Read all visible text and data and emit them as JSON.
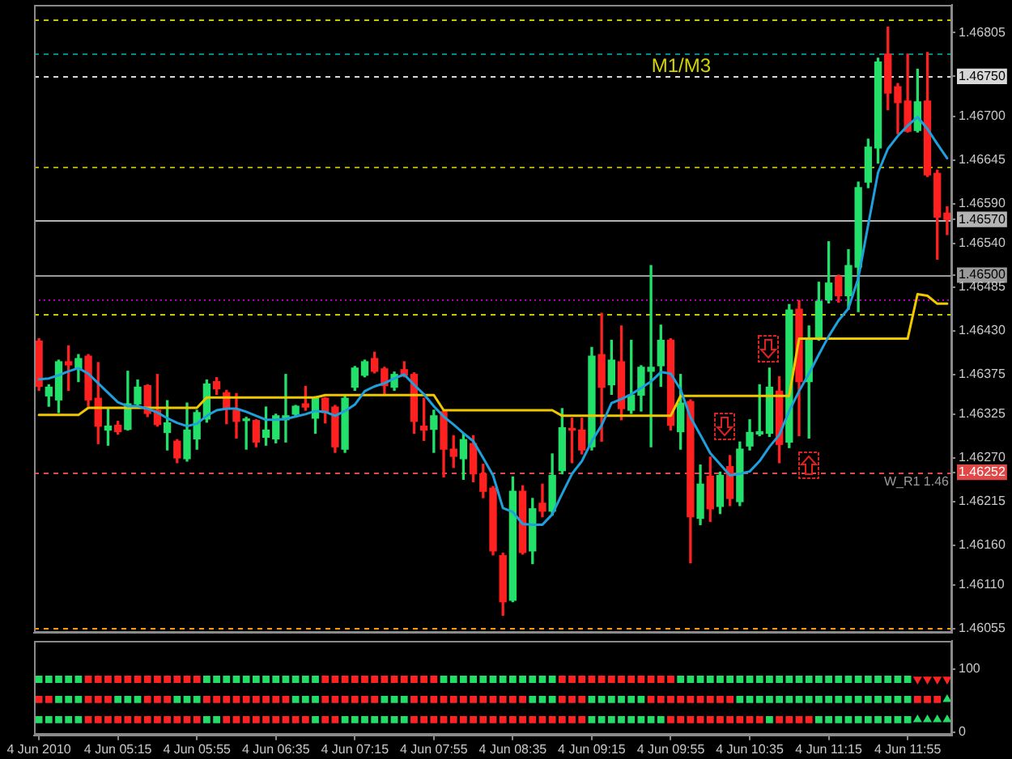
{
  "chart_data": [
    {
      "type": "candlestick",
      "categories": [
        null,
        null,
        null,
        null,
        null,
        null,
        null,
        null,
        null,
        null,
        null,
        null,
        null,
        null,
        null,
        null,
        null,
        null,
        null,
        null,
        null,
        null,
        null,
        null,
        null,
        null,
        null,
        null,
        null,
        null,
        null,
        null,
        null,
        null,
        null,
        null,
        null,
        null,
        null,
        null,
        null,
        null,
        null,
        null,
        null,
        null,
        null,
        null,
        null,
        null,
        null,
        null,
        null,
        null,
        null,
        null,
        null,
        null,
        null,
        null,
        null,
        null,
        null,
        null,
        null,
        null,
        null,
        null,
        null,
        null,
        null,
        null,
        null,
        null,
        null,
        null,
        null,
        null,
        null,
        null,
        null,
        null,
        null,
        null,
        null,
        null,
        null,
        null,
        null,
        null,
        null,
        null,
        null
      ],
      "ohlc": [
        [
          1.46417,
          1.4642,
          1.46355,
          1.4636
        ],
        [
          1.46348,
          1.46362,
          1.46335,
          1.46359
        ],
        [
          1.46343,
          1.46393,
          1.46327,
          1.46391
        ],
        [
          1.46391,
          1.46411,
          1.46355,
          1.46387
        ],
        [
          1.46382,
          1.464,
          1.46366,
          1.46395
        ],
        [
          1.46398,
          1.464,
          1.46335,
          1.46343
        ],
        [
          1.46345,
          1.4639,
          1.46288,
          1.4631
        ],
        [
          1.46305,
          1.46332,
          1.46286,
          1.4631
        ],
        [
          1.46311,
          1.46316,
          1.463,
          1.46303
        ],
        [
          1.46306,
          1.46379,
          1.46305,
          1.46338
        ],
        [
          1.46338,
          1.46368,
          1.46333,
          1.46359
        ],
        [
          1.46361,
          1.46362,
          1.46322,
          1.46326
        ],
        [
          1.4633,
          1.46375,
          1.4631,
          1.46312
        ],
        [
          1.46302,
          1.46342,
          1.4628,
          1.46314
        ],
        [
          1.46291,
          1.46293,
          1.46264,
          1.4627
        ],
        [
          1.46269,
          1.46339,
          1.46266,
          1.46305
        ],
        [
          1.46294,
          1.4633,
          1.46281,
          1.46327
        ],
        [
          1.46319,
          1.46368,
          1.46315,
          1.46363
        ],
        [
          1.46366,
          1.46371,
          1.4635,
          1.46357
        ],
        [
          1.46352,
          1.46355,
          1.46313,
          1.46332
        ],
        [
          1.4633,
          1.46351,
          1.46295,
          1.46316
        ],
        [
          1.46317,
          1.46321,
          1.46281,
          1.46319
        ],
        [
          1.46317,
          1.46318,
          1.46284,
          1.4629
        ],
        [
          1.46296,
          1.46334,
          1.46286,
          1.46305
        ],
        [
          1.46294,
          1.46325,
          1.46289,
          1.46323
        ],
        [
          1.46318,
          1.46375,
          1.4629,
          1.46323
        ],
        [
          1.46325,
          1.46336,
          1.46322,
          1.46335
        ],
        [
          1.46338,
          1.4636,
          1.4633,
          1.46334
        ],
        [
          1.4632,
          1.46347,
          1.46301,
          1.46345
        ],
        [
          1.46345,
          1.46346,
          1.46314,
          1.46327
        ],
        [
          1.46334,
          1.46336,
          1.46277,
          1.46284
        ],
        [
          1.46281,
          1.46348,
          1.46277,
          1.46345
        ],
        [
          1.46359,
          1.46385,
          1.46355,
          1.46383
        ],
        [
          1.46374,
          1.46393,
          1.46372,
          1.46391
        ],
        [
          1.46395,
          1.46403,
          1.46377,
          1.46379
        ],
        [
          1.46382,
          1.46384,
          1.4635,
          1.46361
        ],
        [
          1.46359,
          1.46378,
          1.46355,
          1.46375
        ],
        [
          1.46381,
          1.46391,
          1.46372,
          1.46374
        ],
        [
          1.46375,
          1.46377,
          1.46301,
          1.46316
        ],
        [
          1.4631,
          1.46345,
          1.46292,
          1.46305
        ],
        [
          1.46306,
          1.4633,
          1.46277,
          1.46323
        ],
        [
          1.46328,
          1.4633,
          1.46246,
          1.46281
        ],
        [
          1.46281,
          1.46298,
          1.46258,
          1.46272
        ],
        [
          1.46269,
          1.463,
          1.46243,
          1.46293
        ],
        [
          1.46288,
          1.46298,
          1.4624,
          1.4625
        ],
        [
          1.4625,
          1.46262,
          1.4622,
          1.46228
        ],
        [
          1.46232,
          1.46234,
          1.46148,
          1.46153
        ],
        [
          1.46147,
          1.4615,
          1.46072,
          1.46089
        ],
        [
          1.46091,
          1.46246,
          1.46089,
          1.46228
        ],
        [
          1.46228,
          1.46235,
          1.46149,
          1.46151
        ],
        [
          1.46153,
          1.46219,
          1.46137,
          1.46206
        ],
        [
          1.46213,
          1.46237,
          1.46196,
          1.46203
        ],
        [
          1.46203,
          1.46275,
          1.46198,
          1.46248
        ],
        [
          1.46254,
          1.46332,
          1.4625,
          1.46308
        ],
        [
          1.46307,
          1.4632,
          1.46264,
          1.46305
        ],
        [
          1.46305,
          1.4632,
          1.46275,
          1.4628
        ],
        [
          1.46284,
          1.46409,
          1.4628,
          1.46398
        ],
        [
          1.464,
          1.46452,
          1.46291,
          1.46359
        ],
        [
          1.46362,
          1.46418,
          1.4635,
          1.46393
        ],
        [
          1.46391,
          1.46436,
          1.46318,
          1.46332
        ],
        [
          1.4633,
          1.46418,
          1.46326,
          1.46349
        ],
        [
          1.46349,
          1.46386,
          1.46329,
          1.46384
        ],
        [
          1.46379,
          1.46512,
          1.46284,
          1.46384
        ],
        [
          1.46386,
          1.46437,
          1.4636,
          1.46418
        ],
        [
          1.46418,
          1.4642,
          1.46305,
          1.46311
        ],
        [
          1.46303,
          1.46375,
          1.46281,
          1.46339
        ],
        [
          1.46341,
          1.46343,
          1.46138,
          1.46196
        ],
        [
          1.46194,
          1.46261,
          1.46186,
          1.46237
        ],
        [
          1.46247,
          1.46271,
          1.4619,
          1.46206
        ],
        [
          1.46209,
          1.46252,
          1.462,
          1.46248
        ],
        [
          1.46259,
          1.46273,
          1.4621,
          1.46219
        ],
        [
          1.46215,
          1.4629,
          1.4621,
          1.46281
        ],
        [
          1.46285,
          1.46318,
          1.4628,
          1.46302
        ],
        [
          1.463,
          1.46362,
          1.46298,
          1.46303
        ],
        [
          1.46301,
          1.46383,
          1.46297,
          1.46359
        ],
        [
          1.46354,
          1.46372,
          1.46264,
          1.46287
        ],
        [
          1.4629,
          1.46463,
          1.46283,
          1.46456
        ],
        [
          1.46457,
          1.46468,
          1.46298,
          1.46366
        ],
        [
          1.46366,
          1.46436,
          1.46295,
          1.4642
        ],
        [
          1.46422,
          1.46491,
          1.46418,
          1.46467
        ],
        [
          1.46469,
          1.46542,
          1.46465,
          1.4649
        ],
        [
          1.46498,
          1.465,
          1.46466,
          1.46474
        ],
        [
          1.46474,
          1.46532,
          1.46457,
          1.46512
        ],
        [
          1.4651,
          1.46617,
          1.46454,
          1.4661
        ],
        [
          1.46617,
          1.46671,
          1.4661,
          1.46661
        ],
        [
          1.4666,
          1.46773,
          1.46641,
          1.46768
        ],
        [
          1.46778,
          1.46812,
          1.46708,
          1.46729
        ],
        [
          1.46737,
          1.46741,
          1.46678,
          1.46717
        ],
        [
          1.46719,
          1.46778,
          1.4668,
          1.46681
        ],
        [
          1.46682,
          1.46759,
          1.4668,
          1.46718
        ],
        [
          1.46719,
          1.4678,
          1.46624,
          1.46626
        ],
        [
          1.46628,
          1.46632,
          1.4652,
          1.46573
        ],
        [
          1.46578,
          1.46586,
          1.46551,
          1.4657
        ]
      ],
      "colors": [
        "#ff2020",
        "#22e06a",
        "#22e06a",
        "#ff2020",
        "#22e06a",
        "#ff2020",
        "#ff2020",
        "#22e06a",
        "#ff2020",
        "#22e06a",
        "#22e06a",
        "#ff2020",
        "#ff2020",
        "#22e06a",
        "#ff2020",
        "#22e06a",
        "#22e06a",
        "#22e06a",
        "#ff2020",
        "#ff2020",
        "#ff2020",
        "#22e06a",
        "#ff2020",
        "#22e06a",
        "#22e06a",
        "#22e06a",
        "#22e06a",
        "#ff2020",
        "#22e06a",
        "#ff2020",
        "#ff2020",
        "#22e06a",
        "#22e06a",
        "#22e06a",
        "#ff2020",
        "#ff2020",
        "#22e06a",
        "#ff2020",
        "#ff2020",
        "#ff2020",
        "#22e06a",
        "#ff2020",
        "#ff2020",
        "#22e06a",
        "#ff2020",
        "#ff2020",
        "#ff2020",
        "#ff2020",
        "#22e06a",
        "#ff2020",
        "#22e06a",
        "#ff2020",
        "#22e06a",
        "#22e06a",
        "#ff2020",
        "#ff2020",
        "#22e06a",
        "#ff2020",
        "#22e06a",
        "#ff2020",
        "#22e06a",
        "#22e06a",
        "#22e06a",
        "#22e06a",
        "#ff2020",
        "#22e06a",
        "#ff2020",
        "#22e06a",
        "#ff2020",
        "#22e06a",
        "#ff2020",
        "#22e06a",
        "#22e06a",
        "#22e06a",
        "#22e06a",
        "#ff2020",
        "#22e06a",
        "#ff2020",
        "#22e06a",
        "#22e06a",
        "#22e06a",
        "#ff2020",
        "#22e06a",
        "#22e06a",
        "#22e06a",
        "#22e06a",
        "#ff2020",
        "#ff2020",
        "#ff2020",
        "#22e06a",
        "#ff2020",
        "#ff2020",
        "#ff2020"
      ],
      "series": [
        {
          "type": "line",
          "color": "#1ea0dc",
          "values": [
            1.46369,
            1.4637,
            1.46374,
            1.46379,
            1.46383,
            1.46376,
            1.46364,
            1.46352,
            1.4634,
            1.46335,
            1.46335,
            1.46332,
            1.46327,
            1.4632,
            1.46314,
            1.4631,
            1.46313,
            1.46323,
            1.4633,
            1.46332,
            1.46332,
            1.46328,
            1.46323,
            1.46318,
            1.46318,
            1.46319,
            1.46322,
            1.46325,
            1.46329,
            1.46328,
            1.46323,
            1.46329,
            1.46337,
            1.46354,
            1.4636,
            1.46364,
            1.4637,
            1.46375,
            1.46362,
            1.4635,
            1.46335,
            1.46322,
            1.46312,
            1.46301,
            1.46291,
            1.4627,
            1.46248,
            1.46207,
            1.46202,
            1.46187,
            1.46186,
            1.46186,
            1.46199,
            1.46225,
            1.4625,
            1.46266,
            1.46291,
            1.46311,
            1.46339,
            1.46344,
            1.4635,
            1.46358,
            1.46366,
            1.46378,
            1.46376,
            1.46356,
            1.46321,
            1.46299,
            1.46276,
            1.46262,
            1.46248,
            1.4625,
            1.46253,
            1.46266,
            1.46284,
            1.46299,
            1.46329,
            1.46354,
            1.46376,
            1.464,
            1.46423,
            1.46443,
            1.46458,
            1.46496,
            1.46563,
            1.46629,
            1.46659,
            1.46675,
            1.46688,
            1.46699,
            1.46684,
            1.46665,
            1.46647
          ]
        },
        {
          "type": "line",
          "color": "#f0c800",
          "values": [
            1.46324,
            1.46324,
            1.46324,
            1.46324,
            1.46324,
            1.46333,
            1.46333,
            1.46333,
            1.46333,
            1.46333,
            1.46333,
            1.46333,
            1.46333,
            1.46333,
            1.46333,
            1.46333,
            1.46333,
            1.46346,
            1.46346,
            1.46346,
            1.46346,
            1.46346,
            1.46346,
            1.46346,
            1.46346,
            1.46346,
            1.46346,
            1.46346,
            1.46346,
            1.46349,
            1.46349,
            1.46349,
            1.46349,
            1.46349,
            1.46349,
            1.46349,
            1.46349,
            1.46349,
            1.46349,
            1.46349,
            1.46349,
            1.4633,
            1.4633,
            1.4633,
            1.4633,
            1.4633,
            1.4633,
            1.4633,
            1.4633,
            1.4633,
            1.4633,
            1.4633,
            1.4633,
            1.46323,
            1.46323,
            1.46323,
            1.46323,
            1.46323,
            1.46323,
            1.46323,
            1.46323,
            1.46323,
            1.46323,
            1.46323,
            1.46323,
            1.46348,
            1.46348,
            1.46348,
            1.46348,
            1.46348,
            1.46348,
            1.46348,
            1.46348,
            1.46348,
            1.46348,
            1.46348,
            1.46348,
            1.4642,
            1.4642,
            1.4642,
            1.4642,
            1.4642,
            1.4642,
            1.4642,
            1.4642,
            1.4642,
            1.4642,
            1.4642,
            1.4642,
            1.46476,
            1.46474,
            1.46464,
            1.46464
          ]
        }
      ],
      "ylim": [
        1.4605,
        1.4684
      ],
      "yticks": [
        1.46805,
        {
          "value": 1.4675,
          "label": "1.46750"
        },
        {
          "value": 1.467,
          "label": "1.46700"
        },
        1.46645,
        {
          "value": 1.4659,
          "label": "1.46590"
        },
        {
          "value": 1.4657,
          "label": "1.46570"
        },
        {
          "value": 1.4654,
          "label": "1.46540"
        },
        {
          "value": 1.465,
          "label": "1.46500"
        },
        1.46485,
        {
          "value": 1.4643,
          "label": "1.46430"
        },
        1.46375,
        1.46325,
        {
          "value": 1.4627,
          "label": "1.46270"
        },
        1.46252,
        1.46215,
        {
          "value": 1.4616,
          "label": "1.46160"
        },
        {
          "value": 1.4611,
          "label": "1.46110"
        },
        1.46055
      ],
      "tick_labels": "y",
      "ref_lines": [
        {
          "axis": "y",
          "value": 1.46822,
          "color": "#c8c800",
          "line_style": "dashed"
        },
        {
          "axis": "y",
          "value": 1.46779,
          "color": "#008c8c",
          "line_style": "dashed"
        },
        {
          "axis": "y",
          "value": 1.4675,
          "color": "#d8d8d8",
          "line_style": "dashed"
        },
        {
          "axis": "y",
          "value": 1.46637,
          "color": "#a8a800",
          "line_style": "dashed"
        },
        {
          "axis": "y",
          "value": 1.4657,
          "color": "#b4b4b4",
          "line_style": "solid"
        },
        {
          "axis": "y",
          "value": 1.465,
          "color": "#9a9a9a",
          "line_style": "solid"
        },
        {
          "axis": "y",
          "value": 1.4647,
          "color": "#b000b0",
          "line_style": "dotted"
        },
        {
          "axis": "y",
          "value": 1.46452,
          "color": "#c8c800",
          "line_style": "dashed"
        },
        {
          "axis": "y",
          "value": 1.46252,
          "color": "#e04848",
          "line_style": "dashed",
          "label": "W_R1 1.46"
        },
        {
          "axis": "y",
          "value": 1.46057,
          "color": "#ff9900",
          "line_style": "dashed"
        }
      ],
      "annotations": [
        "M1/M3"
      ]
    },
    {
      "type": "scatter",
      "categories": [
        "4 Jun 2010",
        null,
        null,
        null,
        null,
        null,
        null,
        null,
        "4 Jun 05:15",
        null,
        null,
        null,
        null,
        null,
        null,
        null,
        "4 Jun 05:55",
        null,
        null,
        null,
        null,
        null,
        null,
        null,
        "4 Jun 06:35",
        null,
        null,
        null,
        null,
        null,
        null,
        null,
        "4 Jun 07:15",
        null,
        null,
        null,
        null,
        null,
        null,
        null,
        "4 Jun 07:55",
        null,
        null,
        null,
        null,
        null,
        null,
        null,
        "4 Jun 08:35",
        null,
        null,
        null,
        null,
        null,
        null,
        null,
        "4 Jun 09:15",
        null,
        null,
        null,
        null,
        null,
        null,
        null,
        "4 Jun 09:55",
        null,
        null,
        null,
        null,
        null,
        null,
        null,
        "4 Jun 10:35",
        null,
        null,
        null,
        null,
        null,
        null,
        null,
        "4 Jun 11:15",
        null,
        null,
        null,
        null,
        null,
        null,
        null,
        "4 Jun 11:55",
        null,
        null,
        null,
        null
      ],
      "ylim": [
        -5,
        145
      ],
      "yticks": [
        0,
        100
      ],
      "marker": "square",
      "series": [
        {
          "values": [
            84,
            84,
            84,
            84,
            84,
            84,
            84,
            84,
            84,
            84,
            84,
            84,
            84,
            84,
            84,
            84,
            84,
            84,
            84,
            84,
            84,
            84,
            84,
            84,
            84,
            84,
            84,
            84,
            84,
            84,
            84,
            84,
            84,
            84,
            84,
            84,
            84,
            84,
            84,
            84,
            84,
            84,
            84,
            84,
            84,
            84,
            84,
            84,
            84,
            84,
            84,
            84,
            84,
            84,
            84,
            84,
            84,
            84,
            84,
            84,
            84,
            84,
            84,
            84,
            84,
            84,
            84,
            84,
            84,
            84,
            84,
            84,
            84,
            84,
            84,
            84,
            84,
            84,
            84,
            84,
            84,
            84,
            84,
            84,
            84,
            84,
            84,
            84,
            84,
            null,
            null,
            null,
            null
          ],
          "colors": [
            "#22dd66",
            "#22dd66",
            "#22dd66",
            "#22dd66",
            "#22dd66",
            "#ff2222",
            "#ff2222",
            "#ff2222",
            "#ff2222",
            "#ff2222",
            "#ff2222",
            "#ff2222",
            "#ff2222",
            "#ff2222",
            "#ff2222",
            "#ff2222",
            "#ff2222",
            "#22dd66",
            "#22dd66",
            "#22dd66",
            "#22dd66",
            "#22dd66",
            "#22dd66",
            "#22dd66",
            "#22dd66",
            "#22dd66",
            "#22dd66",
            "#22dd66",
            "#22dd66",
            "#ff2222",
            "#ff2222",
            "#ff2222",
            "#ff2222",
            "#ff2222",
            "#ff2222",
            "#ff2222",
            "#ff2222",
            "#ff2222",
            "#ff2222",
            "#ff2222",
            "#ff2222",
            "#22dd66",
            "#22dd66",
            "#22dd66",
            "#22dd66",
            "#22dd66",
            "#22dd66",
            "#22dd66",
            "#22dd66",
            "#22dd66",
            "#22dd66",
            "#22dd66",
            "#22dd66",
            "#ff2222",
            "#ff2222",
            "#ff2222",
            "#ff2222",
            "#ff2222",
            "#ff2222",
            "#ff2222",
            "#ff2222",
            "#ff2222",
            "#ff2222",
            "#ff2222",
            "#ff2222",
            "#22dd66",
            "#22dd66",
            "#22dd66",
            "#22dd66",
            "#22dd66",
            "#22dd66",
            "#22dd66",
            "#22dd66",
            "#22dd66",
            "#22dd66",
            "#22dd66",
            "#22dd66",
            "#22dd66",
            "#22dd66",
            "#22dd66",
            "#22dd66",
            "#22dd66",
            "#22dd66",
            "#22dd66",
            "#22dd66",
            "#22dd66",
            "#22dd66",
            "#22dd66",
            "#22dd66",
            null,
            null,
            null,
            null
          ]
        },
        {
          "marker": "triangle",
          "color": "#ff2222",
          "values": [
            null,
            null,
            null,
            null,
            null,
            null,
            null,
            null,
            null,
            null,
            null,
            null,
            null,
            null,
            null,
            null,
            null,
            null,
            null,
            null,
            null,
            null,
            null,
            null,
            null,
            null,
            null,
            null,
            null,
            null,
            null,
            null,
            null,
            null,
            null,
            null,
            null,
            null,
            null,
            null,
            null,
            null,
            null,
            null,
            null,
            null,
            null,
            null,
            null,
            null,
            null,
            null,
            null,
            null,
            null,
            null,
            null,
            null,
            null,
            null,
            null,
            null,
            null,
            null,
            null,
            null,
            null,
            null,
            null,
            null,
            null,
            null,
            null,
            null,
            null,
            null,
            null,
            null,
            null,
            null,
            null,
            null,
            null,
            null,
            null,
            null,
            null,
            null,
            null,
            84,
            84,
            84,
            84
          ]
        },
        {
          "values": [
            52,
            52,
            52,
            52,
            52,
            52,
            52,
            52,
            52,
            52,
            52,
            52,
            52,
            52,
            52,
            52,
            52,
            52,
            52,
            52,
            52,
            52,
            52,
            52,
            52,
            52,
            52,
            52,
            52,
            52,
            52,
            52,
            52,
            52,
            52,
            52,
            52,
            52,
            52,
            52,
            52,
            52,
            52,
            52,
            52,
            52,
            52,
            52,
            52,
            52,
            52,
            52,
            52,
            52,
            52,
            52,
            52,
            52,
            52,
            52,
            52,
            52,
            52,
            52,
            52,
            52,
            52,
            52,
            52,
            52,
            52,
            52,
            52,
            52,
            52,
            52,
            52,
            52,
            52,
            52,
            52,
            52,
            52,
            52,
            52,
            52,
            52,
            52,
            52,
            52,
            52,
            52,
            null
          ],
          "colors": [
            "#ff2222",
            "#ff2222",
            "#22dd66",
            "#22dd66",
            "#22dd66",
            "#ff2222",
            "#ff2222",
            "#ff2222",
            "#22dd66",
            "#22dd66",
            "#22dd66",
            "#ff2222",
            "#ff2222",
            "#ff2222",
            "#22dd66",
            "#22dd66",
            "#22dd66",
            "#ff2222",
            "#ff2222",
            "#ff2222",
            "#ff2222",
            "#ff2222",
            "#ff2222",
            "#ff2222",
            "#ff2222",
            "#ff2222",
            "#22dd66",
            "#22dd66",
            "#22dd66",
            "#ff2222",
            "#ff2222",
            "#ff2222",
            "#ff2222",
            "#ff2222",
            "#ff2222",
            "#22dd66",
            "#22dd66",
            "#22dd66",
            "#ff2222",
            "#ff2222",
            "#ff2222",
            "#ff2222",
            "#ff2222",
            "#ff2222",
            "#ff2222",
            "#ff2222",
            "#ff2222",
            "#ff2222",
            "#ff2222",
            "#ff2222",
            "#22dd66",
            "#22dd66",
            "#22dd66",
            "#ff2222",
            "#ff2222",
            "#ff2222",
            "#22dd66",
            "#22dd66",
            "#22dd66",
            "#22dd66",
            "#22dd66",
            "#22dd66",
            "#ff2222",
            "#ff2222",
            "#ff2222",
            "#ff2222",
            "#ff2222",
            "#ff2222",
            "#ff2222",
            "#ff2222",
            "#ff2222",
            "#22dd66",
            "#22dd66",
            "#22dd66",
            "#22dd66",
            "#22dd66",
            "#22dd66",
            "#22dd66",
            "#22dd66",
            "#22dd66",
            "#22dd66",
            "#22dd66",
            "#22dd66",
            "#22dd66",
            "#22dd66",
            "#22dd66",
            "#22dd66",
            "#22dd66",
            "#22dd66",
            "#ff2222",
            "#ff2222",
            "#ff2222",
            null
          ]
        },
        {
          "marker": "triangle",
          "color": "#22dd66",
          "values": [
            null,
            null,
            null,
            null,
            null,
            null,
            null,
            null,
            null,
            null,
            null,
            null,
            null,
            null,
            null,
            null,
            null,
            null,
            null,
            null,
            null,
            null,
            null,
            null,
            null,
            null,
            null,
            null,
            null,
            null,
            null,
            null,
            null,
            null,
            null,
            null,
            null,
            null,
            null,
            null,
            null,
            null,
            null,
            null,
            null,
            null,
            null,
            null,
            null,
            null,
            null,
            null,
            null,
            null,
            null,
            null,
            null,
            null,
            null,
            null,
            null,
            null,
            null,
            null,
            null,
            null,
            null,
            null,
            null,
            null,
            null,
            null,
            null,
            null,
            null,
            null,
            null,
            null,
            null,
            null,
            null,
            null,
            null,
            null,
            null,
            null,
            null,
            null,
            null,
            null,
            null,
            null,
            52
          ]
        },
        {
          "values": [
            20,
            20,
            20,
            20,
            20,
            20,
            20,
            20,
            20,
            20,
            20,
            20,
            20,
            20,
            20,
            20,
            20,
            20,
            20,
            20,
            20,
            20,
            20,
            20,
            20,
            20,
            20,
            20,
            20,
            20,
            20,
            20,
            20,
            20,
            20,
            20,
            20,
            20,
            20,
            20,
            20,
            20,
            20,
            20,
            20,
            20,
            20,
            20,
            20,
            20,
            20,
            20,
            20,
            20,
            20,
            20,
            20,
            20,
            20,
            20,
            20,
            20,
            20,
            20,
            20,
            20,
            20,
            20,
            20,
            20,
            20,
            20,
            20,
            20,
            20,
            20,
            20,
            20,
            20,
            20,
            20,
            20,
            20,
            20,
            20,
            20,
            20,
            20,
            20,
            null,
            null,
            null,
            null
          ],
          "colors": [
            "#22dd66",
            "#22dd66",
            "#22dd66",
            "#22dd66",
            "#22dd66",
            "#ff2222",
            "#ff2222",
            "#ff2222",
            "#ff2222",
            "#ff2222",
            "#ff2222",
            "#ff2222",
            "#ff2222",
            "#ff2222",
            "#ff2222",
            "#ff2222",
            "#ff2222",
            "#22dd66",
            "#22dd66",
            "#ff2222",
            "#ff2222",
            "#ff2222",
            "#ff2222",
            "#ff2222",
            "#ff2222",
            "#ff2222",
            "#ff2222",
            "#ff2222",
            "#22dd66",
            "#ff2222",
            "#ff2222",
            "#22dd66",
            "#22dd66",
            "#22dd66",
            "#22dd66",
            "#22dd66",
            "#22dd66",
            "#22dd66",
            "#ff2222",
            "#ff2222",
            "#ff2222",
            "#ff2222",
            "#ff2222",
            "#ff2222",
            "#ff2222",
            "#ff2222",
            "#ff2222",
            "#ff2222",
            "#ff2222",
            "#ff2222",
            "#ff2222",
            "#ff2222",
            "#ff2222",
            "#ff2222",
            "#ff2222",
            "#ff2222",
            "#22dd66",
            "#22dd66",
            "#22dd66",
            "#22dd66",
            "#22dd66",
            "#22dd66",
            "#22dd66",
            "#22dd66",
            "#ff2222",
            "#ff2222",
            "#ff2222",
            "#ff2222",
            "#ff2222",
            "#ff2222",
            "#ff2222",
            "#ff2222",
            "#ff2222",
            "#ff2222",
            "#22dd66",
            "#ff2222",
            "#ff2222",
            "#ff2222",
            "#ff2222",
            "#22dd66",
            "#22dd66",
            "#22dd66",
            "#22dd66",
            "#22dd66",
            "#22dd66",
            "#22dd66",
            "#22dd66",
            "#22dd66",
            "#22dd66",
            null,
            null,
            null,
            null
          ]
        },
        {
          "marker": "triangle",
          "color": "#22dd66",
          "values": [
            null,
            null,
            null,
            null,
            null,
            null,
            null,
            null,
            null,
            null,
            null,
            null,
            null,
            null,
            null,
            null,
            null,
            null,
            null,
            null,
            null,
            null,
            null,
            null,
            null,
            null,
            null,
            null,
            null,
            null,
            null,
            null,
            null,
            null,
            null,
            null,
            null,
            null,
            null,
            null,
            null,
            null,
            null,
            null,
            null,
            null,
            null,
            null,
            null,
            null,
            null,
            null,
            null,
            null,
            null,
            null,
            null,
            null,
            null,
            null,
            null,
            null,
            null,
            null,
            null,
            null,
            null,
            null,
            null,
            null,
            null,
            null,
            null,
            null,
            null,
            null,
            null,
            null,
            null,
            null,
            null,
            null,
            null,
            null,
            null,
            null,
            null,
            null,
            null,
            20,
            20,
            20,
            20
          ]
        }
      ]
    }
  ]
}
